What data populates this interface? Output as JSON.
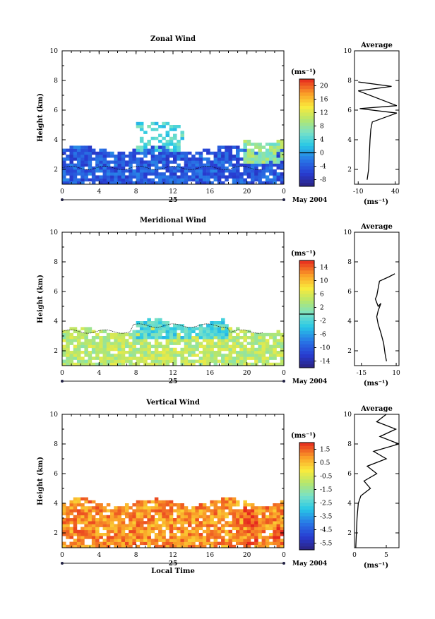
{
  "chart_data": [
    {
      "type": "heatmap",
      "title": "Zonal Wind",
      "ylabel": "Height (km)",
      "ylim": [
        1,
        10
      ],
      "yticks": [
        "2",
        "4",
        "6",
        "8",
        "10"
      ],
      "xlim": [
        0,
        24
      ],
      "xticks": [
        "0",
        "4",
        "8",
        "12",
        "16",
        "20",
        "0"
      ],
      "date_label": "25",
      "month_label": "May 2004",
      "colorbar": {
        "unit": "(ms⁻¹)",
        "min": -10,
        "max": 22,
        "ticks": [
          "20",
          "16",
          "12",
          "8",
          "4",
          "0",
          "-4",
          "-8"
        ],
        "tick_values": [
          20,
          16,
          12,
          8,
          4,
          0,
          -4,
          -8
        ],
        "zero_line": 0
      },
      "profile": {
        "title": "Average",
        "xlabel": "(ms⁻¹)",
        "xticks": [
          "-10",
          "40"
        ],
        "xlim": [
          -15,
          45
        ],
        "yticks": [
          "2",
          "4",
          "6",
          "8",
          "10"
        ],
        "height_km": [
          1.3,
          2.0,
          3.0,
          4.0,
          4.7,
          5.2,
          5.8,
          6.1,
          6.3,
          7.3,
          7.6,
          7.9
        ],
        "speed": [
          2,
          4,
          5,
          6,
          7,
          9,
          42,
          -8,
          42,
          -10,
          35,
          -10
        ]
      },
      "fields": [
        {
          "name": "low_wind",
          "x_range": [
            0,
            24
          ],
          "height_range": [
            1,
            3.3
          ],
          "value": -4
        },
        {
          "name": "afternoon_positive",
          "x_range": [
            19.5,
            24
          ],
          "height_range": [
            2.2,
            3.9
          ],
          "value": 8
        },
        {
          "name": "mid_plume",
          "x_range": [
            8,
            13
          ],
          "height_range": [
            3,
            5
          ],
          "value": 4
        }
      ]
    },
    {
      "type": "heatmap",
      "title": "Meridional Wind",
      "ylabel": "Height (km)",
      "ylim": [
        1,
        10
      ],
      "yticks": [
        "2",
        "4",
        "6",
        "8",
        "10"
      ],
      "xlim": [
        0,
        24
      ],
      "xticks": [
        "0",
        "4",
        "8",
        "12",
        "16",
        "20",
        "0"
      ],
      "date_label": "25",
      "month_label": "May 2004",
      "colorbar": {
        "unit": "(ms⁻¹)",
        "min": -16,
        "max": 16,
        "ticks": [
          "14",
          "10",
          "6",
          "2",
          "-2",
          "-6",
          "-10",
          "-14"
        ],
        "tick_values": [
          14,
          10,
          6,
          2,
          -2,
          -6,
          -10,
          -14
        ],
        "zero_line": 0
      },
      "profile": {
        "title": "Average",
        "xlabel": "(ms⁻¹)",
        "xticks": [
          "-15",
          "10"
        ],
        "xlim": [
          -20,
          12
        ],
        "yticks": [
          "2",
          "4",
          "6",
          "8",
          "10"
        ],
        "height_km": [
          1.3,
          1.8,
          2.5,
          3.2,
          3.8,
          4.3,
          4.7,
          5.2,
          5.0,
          5.5,
          5.7,
          6.7,
          7.0,
          7.2
        ],
        "speed": [
          3,
          2,
          1,
          -1,
          -3,
          -4,
          -3,
          -1,
          -3,
          -5,
          -4,
          -2,
          5,
          9
        ]
      },
      "fields": [
        {
          "name": "low_wind",
          "x_range": [
            0,
            24
          ],
          "height_range": [
            1,
            3.3
          ],
          "value": 4
        },
        {
          "name": "mid_band",
          "x_range": [
            7.5,
            18
          ],
          "height_range": [
            2.7,
            3.8
          ],
          "value": -2
        }
      ]
    },
    {
      "type": "heatmap",
      "title": "Vertical Wind",
      "ylabel": "Height (km)",
      "xlabel": "Local Time",
      "ylim": [
        1,
        10
      ],
      "yticks": [
        "2",
        "4",
        "6",
        "8",
        "10"
      ],
      "xlim": [
        0,
        24
      ],
      "xticks": [
        "0",
        "4",
        "8",
        "12",
        "16",
        "20",
        "0"
      ],
      "date_label": "25",
      "month_label": "May 2004",
      "colorbar": {
        "unit": "(ms⁻¹)",
        "min": -6,
        "max": 2,
        "ticks": [
          "1.5",
          "0.5",
          "-0.5",
          "-1.5",
          "-2.5",
          "-3.5",
          "-4.5",
          "-5.5"
        ],
        "tick_values": [
          1.5,
          0.5,
          -0.5,
          -1.5,
          -2.5,
          -3.5,
          -4.5,
          -5.5
        ]
      },
      "profile": {
        "title": "Average",
        "xlabel": "(ms⁻¹)",
        "xticks": [
          "0",
          "5"
        ],
        "xlim": [
          0,
          7
        ],
        "yticks": [
          "2",
          "4",
          "6",
          "8",
          "10"
        ],
        "height_km": [
          1.0,
          2.0,
          3.0,
          4.0,
          4.5,
          5.0,
          5.5,
          6.0,
          6.5,
          7.0,
          7.5,
          8.0,
          8.5,
          9.0,
          9.5,
          10.0
        ],
        "speed": [
          0.2,
          0.3,
          0.4,
          0.6,
          1.0,
          2.5,
          1.5,
          3.5,
          2.0,
          5.0,
          3.0,
          7.0,
          4.0,
          6.5,
          3.5,
          5.0
        ]
      },
      "fields": [
        {
          "name": "low_wind",
          "x_range": [
            0,
            24
          ],
          "height_range": [
            1,
            4
          ],
          "value": 1.0
        },
        {
          "name": "afternoon_strong",
          "x_range": [
            19.5,
            21
          ],
          "height_range": [
            1.2,
            3.6
          ],
          "value": 1.8
        },
        {
          "name": "evening_strong",
          "x_range": [
            22.5,
            24
          ],
          "height_range": [
            1.3,
            2.3
          ],
          "value": 1.8
        }
      ]
    }
  ]
}
